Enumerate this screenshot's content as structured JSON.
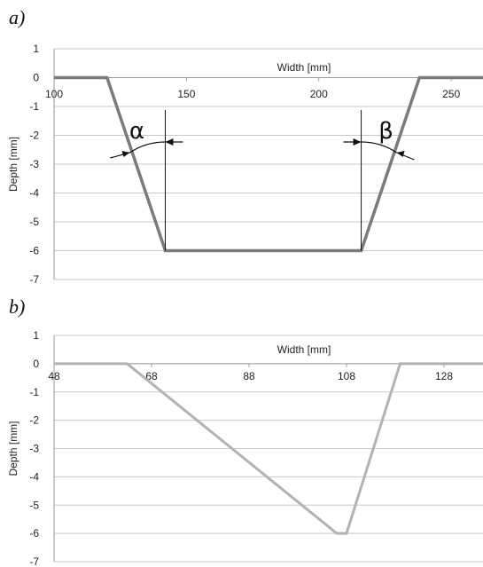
{
  "chart_data": [
    {
      "panel": "a)",
      "type": "line",
      "xlabel": "Width [mm]",
      "ylabel": "Depth [mm]",
      "xlim": [
        100,
        262
      ],
      "ylim": [
        -7,
        1
      ],
      "xticks": [
        100,
        150,
        200,
        250
      ],
      "yticks": [
        1,
        0,
        -1,
        -2,
        -3,
        -4,
        -5,
        -6,
        -7
      ],
      "grid": true,
      "series": [
        {
          "color": "#7a7a7a",
          "x": [
            100,
            120,
            142,
            216,
            238,
            262
          ],
          "y": [
            0,
            0,
            -6,
            -6,
            0,
            0
          ]
        }
      ],
      "annotations": [
        "α",
        "β"
      ]
    },
    {
      "panel": "b)",
      "type": "line",
      "xlabel": "Width [mm]",
      "ylabel": "Depth [mm]",
      "xlim": [
        48,
        136
      ],
      "ylim": [
        -7,
        1
      ],
      "xticks": [
        48,
        68,
        88,
        108,
        128
      ],
      "yticks": [
        1,
        0,
        -1,
        -2,
        -3,
        -4,
        -5,
        -6,
        -7
      ],
      "grid": true,
      "series": [
        {
          "color": "#b3b3b3",
          "x": [
            48,
            63,
            106,
            108,
            119,
            136
          ],
          "y": [
            0,
            0,
            -6,
            -6,
            0,
            0
          ]
        }
      ]
    }
  ]
}
